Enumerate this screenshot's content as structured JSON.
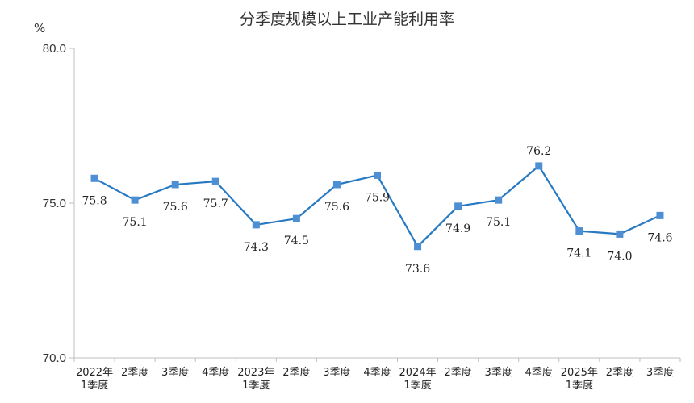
{
  "chart_data": {
    "type": "line",
    "title": "分季度规模以上工业产能利用率",
    "ylabel": "%",
    "ylim": [
      70,
      80
    ],
    "yticks": [
      "70.0",
      "75.0",
      "80.0"
    ],
    "grid": false,
    "categories": [
      {
        "line1": "2022年",
        "line2": "1季度"
      },
      {
        "line1": "2季度",
        "line2": ""
      },
      {
        "line1": "3季度",
        "line2": ""
      },
      {
        "line1": "4季度",
        "line2": ""
      },
      {
        "line1": "2023年",
        "line2": "1季度"
      },
      {
        "line1": "2季度",
        "line2": ""
      },
      {
        "line1": "3季度",
        "line2": ""
      },
      {
        "line1": "4季度",
        "line2": ""
      },
      {
        "line1": "2024年",
        "line2": "1季度"
      },
      {
        "line1": "2季度",
        "line2": ""
      },
      {
        "line1": "3季度",
        "line2": ""
      },
      {
        "line1": "4季度",
        "line2": ""
      },
      {
        "line1": "2025年",
        "line2": "1季度"
      },
      {
        "line1": "2季度",
        "line2": ""
      },
      {
        "line1": "3季度",
        "line2": ""
      }
    ],
    "series": [
      {
        "values": [
          75.8,
          75.1,
          75.6,
          75.7,
          74.3,
          74.5,
          75.6,
          75.9,
          73.6,
          74.9,
          75.1,
          76.2,
          74.1,
          74.0,
          74.6
        ],
        "labels": [
          "75.8",
          "75.1",
          "75.6",
          "75.7",
          "74.3",
          "74.5",
          "75.6",
          "75.9",
          "73.6",
          "74.9",
          "75.1",
          "76.2",
          "74.1",
          "74.0",
          "74.6"
        ]
      }
    ],
    "colors": {
      "line": "#2779c2",
      "marker": "#4e8fd4",
      "axis": "#bfbfbf"
    }
  }
}
